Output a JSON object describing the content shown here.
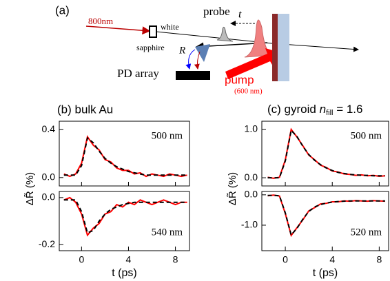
{
  "diagram": {
    "panel": "(a)",
    "laser": "800nm",
    "white": "white",
    "sapphire": "sapphire",
    "probe": "probe",
    "delay": "t",
    "reflect": "R",
    "detector": "PD array",
    "pump": "pump",
    "pump_wavelength": "(600 nm)"
  },
  "chart_data": [
    {
      "type": "line",
      "title": "(b) bulk Au",
      "annotation": "500 nm",
      "x": [
        -1.5,
        -1,
        -0.5,
        0,
        0.5,
        1,
        1.5,
        2,
        2.5,
        3,
        3.5,
        4,
        4.5,
        5,
        5.5,
        6,
        6.5,
        7,
        7.5,
        8,
        8.5,
        9
      ],
      "series": [
        {
          "color": "#ff0000",
          "style": "solid",
          "values": [
            0.03,
            0.01,
            0.03,
            0.12,
            0.34,
            0.27,
            0.23,
            0.15,
            0.13,
            0.08,
            0.06,
            0.06,
            0.03,
            0.04,
            0.01,
            0.03,
            0.02,
            0.01,
            0.03,
            0.02,
            0.01,
            0.02
          ]
        },
        {
          "color": "#000000",
          "style": "dashed",
          "values": [
            0.02,
            0.02,
            0.02,
            0.1,
            0.33,
            0.29,
            0.22,
            0.16,
            0.12,
            0.09,
            0.07,
            0.05,
            0.04,
            0.03,
            0.02,
            0.02,
            0.02,
            0.02,
            0.02,
            0.02,
            0.02,
            0.02
          ]
        }
      ],
      "xlim": [
        -1.9,
        9.2
      ],
      "xticks": [
        0,
        4,
        8
      ],
      "ylim": [
        -0.07,
        0.47
      ],
      "yticks": [
        {
          "value": 0,
          "label": "0.0"
        },
        0.4
      ]
    },
    {
      "type": "line",
      "annotation": "540 nm",
      "xlabel": "t (ps)",
      "ylabel": "ΔR̃ (%)",
      "x": [
        -1.5,
        -1,
        -0.5,
        0,
        0.5,
        1,
        1.5,
        2,
        2.5,
        3,
        3.5,
        4,
        4.5,
        5,
        5.5,
        6,
        6.5,
        7,
        7.5,
        8,
        8.5,
        9
      ],
      "series": [
        {
          "color": "#ff0000",
          "style": "solid",
          "values": [
            -0.01,
            0,
            -0.02,
            -0.07,
            -0.16,
            -0.13,
            -0.11,
            -0.07,
            -0.06,
            -0.03,
            -0.04,
            -0.02,
            -0.03,
            -0.01,
            -0.02,
            -0.03,
            -0.02,
            -0.01,
            -0.02,
            -0.03,
            -0.02,
            -0.02
          ]
        },
        {
          "color": "#000000",
          "style": "dashed",
          "values": [
            -0.01,
            -0.01,
            -0.01,
            -0.06,
            -0.15,
            -0.14,
            -0.1,
            -0.07,
            -0.05,
            -0.04,
            -0.03,
            -0.025,
            -0.02,
            -0.02,
            -0.02,
            -0.02,
            -0.02,
            -0.02,
            -0.02,
            -0.02,
            -0.02,
            -0.02
          ]
        }
      ],
      "xlim": [
        -1.9,
        9.2
      ],
      "xticks": [
        0,
        4,
        8
      ],
      "ylim": [
        -0.226,
        0.026
      ],
      "yticks": [
        {
          "value": 0,
          "label": "0.0"
        },
        -0.2
      ]
    },
    {
      "type": "line",
      "title": "(c) gyroid",
      "title_var": "n",
      "title_sub": "fill",
      "title_eq": "= 1.6",
      "annotation": "500 nm",
      "x": [
        -1.5,
        -1,
        -0.5,
        0,
        0.5,
        1,
        1.5,
        2,
        2.5,
        3,
        3.5,
        4,
        4.5,
        5,
        5.5,
        6,
        6.5,
        7,
        7.5,
        8,
        8.5
      ],
      "series": [
        {
          "color": "#ff0000",
          "style": "solid",
          "values": [
            0.01,
            -0.01,
            0.01,
            0.37,
            1.0,
            0.84,
            0.66,
            0.47,
            0.37,
            0.26,
            0.21,
            0.14,
            0.12,
            0.08,
            0.07,
            0.05,
            0.06,
            0.04,
            0.05,
            0.03,
            0.04
          ]
        },
        {
          "color": "#000000",
          "style": "dashed",
          "values": [
            0,
            0,
            0,
            0.35,
            0.98,
            0.85,
            0.65,
            0.48,
            0.36,
            0.27,
            0.2,
            0.15,
            0.11,
            0.09,
            0.07,
            0.06,
            0.05,
            0.05,
            0.04,
            0.04,
            0.04
          ]
        }
      ],
      "xlim": [
        -2,
        8.8
      ],
      "xticks": [
        0,
        4,
        8
      ],
      "ylim": [
        -0.17,
        1.17
      ],
      "yticks": [
        {
          "value": 1,
          "label": "1.0"
        },
        {
          "value": 0,
          "label": "0.0"
        }
      ]
    },
    {
      "type": "line",
      "annotation": "520 nm",
      "xlabel": "t (ps)",
      "ylabel": "ΔR̃ (%)",
      "x": [
        -1.5,
        -1,
        -0.5,
        0,
        0.5,
        1,
        1.5,
        2,
        2.5,
        3,
        3.5,
        4,
        4.5,
        5,
        5.5,
        6,
        6.5,
        7,
        7.5,
        8,
        8.5
      ],
      "series": [
        {
          "color": "#ff0000",
          "style": "solid",
          "values": [
            -0.03,
            -0.01,
            -0.04,
            -0.62,
            -1.34,
            -1.08,
            -0.82,
            -0.53,
            -0.42,
            -0.3,
            -0.28,
            -0.23,
            -0.23,
            -0.2,
            -0.21,
            -0.19,
            -0.2,
            -0.21,
            -0.19,
            -0.2,
            -0.21
          ]
        },
        {
          "color": "#000000",
          "style": "dashed",
          "values": [
            -0.02,
            -0.02,
            -0.03,
            -0.6,
            -1.32,
            -1.1,
            -0.8,
            -0.55,
            -0.4,
            -0.32,
            -0.27,
            -0.24,
            -0.22,
            -0.21,
            -0.2,
            -0.2,
            -0.2,
            -0.2,
            -0.2,
            -0.2,
            -0.2
          ]
        }
      ],
      "xlim": [
        -2,
        8.8
      ],
      "xticks": [
        0,
        4,
        8
      ],
      "ylim": [
        -1.84,
        0.11
      ],
      "yticks": [
        {
          "value": 0,
          "label": "0.0"
        },
        {
          "value": -1,
          "label": "-1.0"
        }
      ]
    }
  ]
}
